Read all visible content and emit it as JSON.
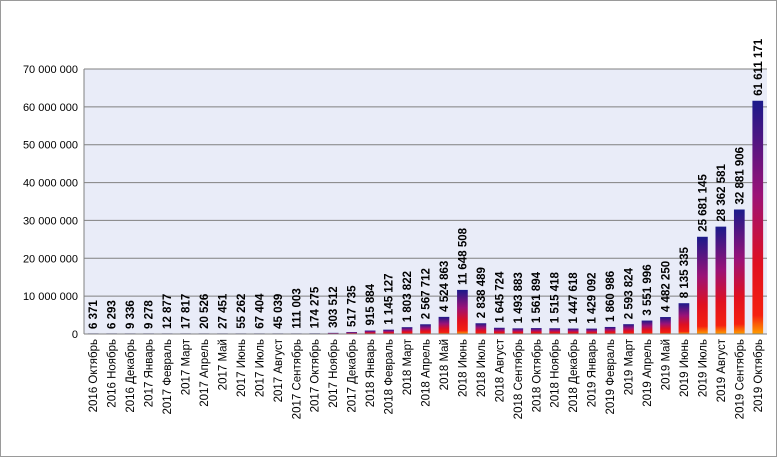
{
  "chart_data": {
    "type": "bar",
    "title": "",
    "xlabel": "",
    "ylabel": "",
    "ylim": [
      0,
      70000000
    ],
    "yticks": [
      0,
      10000000,
      20000000,
      30000000,
      40000000,
      50000000,
      60000000,
      70000000
    ],
    "ytick_labels": [
      "0",
      "10 000 000",
      "20 000 000",
      "30 000 000",
      "40 000 000",
      "50 000 000",
      "60 000 000",
      "70 000 000"
    ],
    "grid": true,
    "legend": "none",
    "colors": {
      "plot_bg": "#e9ecf8",
      "bar_top": "#1b1a8a",
      "bar_mid": "#a0107a",
      "bar_low": "#f01010",
      "bar_base": "#ffa000",
      "grid": "#808080"
    },
    "categories": [
      "2016 Октябрь",
      "2016 Ноябрь",
      "2016 Декабрь",
      "2017 Январь",
      "2017 Февраль",
      "2017 Март",
      "2017 Апрель",
      "2017 Май",
      "2017 Июнь",
      "2017 Июль",
      "2017 Август",
      "2017 Сентябрь",
      "2017 Октябрь",
      "2017 Ноябрь",
      "2017 Декабрь",
      "2018 Январь",
      "2018 Февраль",
      "2018 Март",
      "2018 Апрель",
      "2018 Май",
      "2018 Июнь",
      "2018 Июль",
      "2018 Август",
      "2018 Сентябрь",
      "2018 Октябрь",
      "2018 Ноябрь",
      "2018 Декабрь",
      "2019 Январь",
      "2019 Февраль",
      "2019 Март",
      "2019 Апрель",
      "2019 Май",
      "2019 Июнь",
      "2019 Июль",
      "2019 Август",
      "2019 Сентябрь",
      "2019 Октябрь"
    ],
    "values": [
      6371,
      6293,
      9336,
      9278,
      12877,
      17817,
      20526,
      27451,
      55262,
      67404,
      45039,
      111003,
      174275,
      303512,
      517735,
      915884,
      1145127,
      1803822,
      2567712,
      4524863,
      11648508,
      2838489,
      1645724,
      1493883,
      1561894,
      1515418,
      1447618,
      1429092,
      1860986,
      2593824,
      3551996,
      4482250,
      8135335,
      25681145,
      28362581,
      32881906,
      61611171
    ],
    "data_labels": [
      "6 371",
      "6 293",
      "9 336",
      "9 278",
      "12 877",
      "17 817",
      "20 526",
      "27 451",
      "55 262",
      "67 404",
      "45 039",
      "111 003",
      "174 275",
      "303 512",
      "517 735",
      "915 884",
      "1 145 127",
      "1 803 822",
      "2 567 712",
      "4 524 863",
      "11 648 508",
      "2 838 489",
      "1 645 724",
      "1 493 883",
      "1 561 894",
      "1 515 418",
      "1 447 618",
      "1 429 092",
      "1 860 986",
      "2 593 824",
      "3 551 996",
      "4 482 250",
      "8 135 335",
      "25 681 145",
      "28 362 581",
      "32 881 906",
      "61 611 171"
    ]
  }
}
